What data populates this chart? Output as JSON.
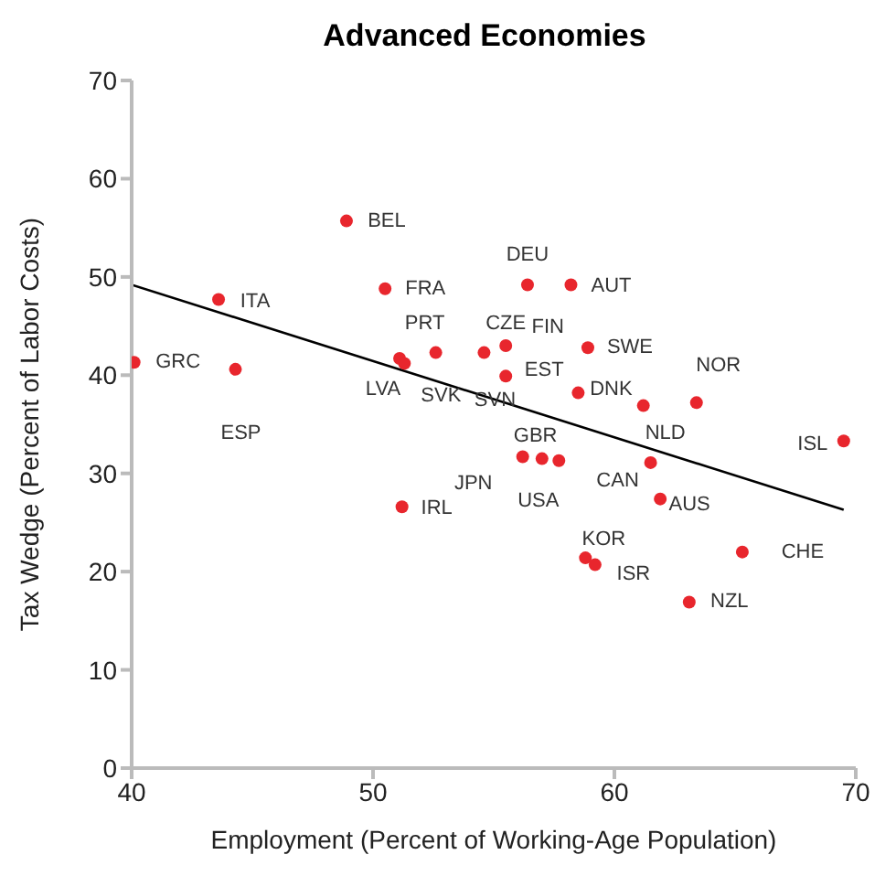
{
  "chart_data": {
    "type": "scatter",
    "title": "Advanced Economies",
    "xlabel": "Employment (Percent of Working-Age Population)",
    "ylabel": "Tax Wedge (Percent of Labor Costs)",
    "xlim": [
      40,
      70
    ],
    "xticks": [
      40,
      50,
      60,
      70
    ],
    "ylim": [
      0,
      70
    ],
    "yticks": [
      0,
      10,
      20,
      30,
      40,
      50,
      60,
      70
    ],
    "grid": false,
    "legend": false,
    "marker": "circle",
    "series": [
      {
        "color": "#e8262d",
        "x": [
          40.1,
          43.6,
          44.3,
          48.9,
          50.5,
          51.1,
          51.3,
          52.6,
          54.6,
          55.5,
          55.5,
          56.4,
          58.2,
          58.9,
          58.5,
          61.2,
          63.4,
          69.5,
          56.2,
          57.0,
          57.7,
          61.5,
          61.9,
          51.2,
          58.8,
          59.2,
          65.3,
          63.1
        ],
        "values": [
          41.3,
          47.7,
          40.6,
          55.7,
          48.8,
          41.7,
          41.2,
          42.3,
          42.3,
          43.0,
          39.9,
          49.2,
          49.2,
          42.8,
          38.2,
          36.9,
          37.2,
          33.3,
          31.7,
          31.5,
          31.3,
          31.1,
          27.4,
          26.6,
          21.4,
          20.7,
          22.0,
          16.9
        ]
      },
      {
        "type": "line",
        "color": "#000000",
        "marker": "none",
        "x": [
          40,
          69.5
        ],
        "values": [
          49.2,
          26.3
        ]
      }
    ],
    "annotations": [
      {
        "text": "GRC",
        "x": 40.1,
        "y": 41.3
      },
      {
        "text": "ITA",
        "x": 43.6,
        "y": 47.7
      },
      {
        "text": "ESP",
        "x": 44.3,
        "y": 40.6
      },
      {
        "text": "BEL",
        "x": 48.9,
        "y": 55.7
      },
      {
        "text": "FRA",
        "x": 50.5,
        "y": 48.8
      },
      {
        "text": "PRT",
        "x": 52.6,
        "y": 42.3
      },
      {
        "text": "LVA",
        "x": 51.1,
        "y": 41.7
      },
      {
        "text": "SVK",
        "x": 51.3,
        "y": 41.2
      },
      {
        "text": "SVN",
        "x": 54.6,
        "y": 42.3
      },
      {
        "text": "CZE",
        "x": 55.5,
        "y": 43.0
      },
      {
        "text": "FIN",
        "x": 55.5,
        "y": 43.0
      },
      {
        "text": "DEU",
        "x": 56.4,
        "y": 49.2
      },
      {
        "text": "AUT",
        "x": 58.2,
        "y": 49.2
      },
      {
        "text": "SWE",
        "x": 58.9,
        "y": 42.8
      },
      {
        "text": "EST",
        "x": 55.5,
        "y": 39.9
      },
      {
        "text": "DNK",
        "x": 58.5,
        "y": 38.2
      },
      {
        "text": "NOR",
        "x": 63.4,
        "y": 37.2
      },
      {
        "text": "NLD",
        "x": 61.2,
        "y": 36.9
      },
      {
        "text": "ISL",
        "x": 69.5,
        "y": 33.3
      },
      {
        "text": "GBR",
        "x": 56.2,
        "y": 31.7
      },
      {
        "text": "USA",
        "x": 57.0,
        "y": 31.5
      },
      {
        "text": "JPN",
        "x": 56.2,
        "y": 31.7
      },
      {
        "text": "CAN",
        "x": 61.5,
        "y": 31.1
      },
      {
        "text": "AUS",
        "x": 61.9,
        "y": 27.4
      },
      {
        "text": "IRL",
        "x": 51.2,
        "y": 26.6
      },
      {
        "text": "KOR",
        "x": 58.8,
        "y": 21.4
      },
      {
        "text": "ISR",
        "x": 59.2,
        "y": 20.7
      },
      {
        "text": "CHE",
        "x": 65.3,
        "y": 22.0
      },
      {
        "text": "NZL",
        "x": 63.1,
        "y": 16.9
      }
    ]
  }
}
